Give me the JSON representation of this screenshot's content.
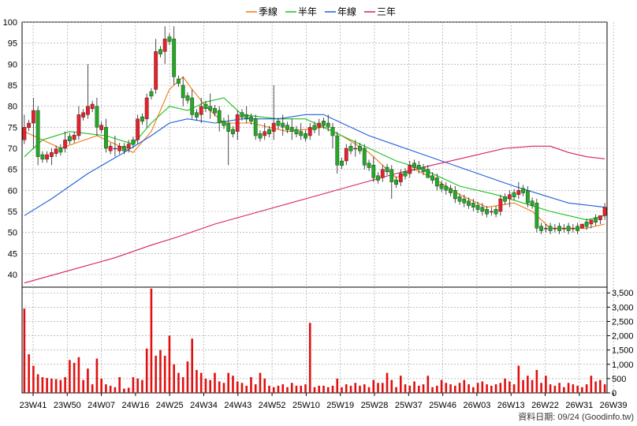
{
  "legend": [
    {
      "label": "季線",
      "color": "#f07a14"
    },
    {
      "label": "半年",
      "color": "#1fbf1f"
    },
    {
      "label": "年線",
      "color": "#1f5fd8"
    },
    {
      "label": "三年",
      "color": "#d61f6a"
    }
  ],
  "source_label": "資料日期: 09/24  (Goodinfo.tw)",
  "colors": {
    "up": "#e8202a",
    "down": "#22aa22",
    "wick": "#202020",
    "volume": "#e01010",
    "grid": "#9a9a9a"
  },
  "chart_data": {
    "type": "candlestick",
    "price_axis": {
      "min": 37,
      "max": 100,
      "ticks": [
        40,
        45,
        50,
        55,
        60,
        65,
        70,
        75,
        80,
        85,
        90,
        95,
        100
      ]
    },
    "volume_axis": {
      "min": 0,
      "max": 3700,
      "ticks": [
        0,
        500,
        "1,000",
        "1,500",
        "2,000",
        "2,500",
        "3,000",
        "3,500"
      ]
    },
    "x_ticks": [
      "23W41",
      "23W50",
      "24W07",
      "24W16",
      "24W25",
      "24W34",
      "24W43",
      "24W52",
      "25W10",
      "25W19",
      "25W28",
      "25W37",
      "25W46",
      "26W03",
      "26W13",
      "26W22",
      "26W31",
      "26W39"
    ],
    "ohlc_keyframes": [
      [
        0,
        72,
        78,
        71,
        75
      ],
      [
        2,
        76,
        82,
        70,
        79
      ],
      [
        3,
        79,
        80,
        66,
        68
      ],
      [
        6,
        68,
        70,
        66,
        69
      ],
      [
        9,
        70,
        74,
        69,
        72
      ],
      [
        12,
        73,
        80,
        72,
        78
      ],
      [
        14,
        78,
        90,
        77,
        80
      ],
      [
        16,
        80,
        82,
        73,
        75
      ],
      [
        18,
        75,
        77,
        69,
        70
      ],
      [
        20,
        70,
        73,
        68,
        70
      ],
      [
        23,
        70,
        72,
        69,
        71
      ],
      [
        25,
        72,
        78,
        71,
        77
      ],
      [
        27,
        77,
        83,
        75,
        82
      ],
      [
        29,
        84,
        96,
        83,
        93
      ],
      [
        31,
        93,
        99,
        90,
        96
      ],
      [
        33,
        96,
        99,
        85,
        87
      ],
      [
        35,
        85,
        87,
        80,
        82
      ],
      [
        37,
        82,
        84,
        77,
        78
      ],
      [
        39,
        78,
        82,
        76,
        80
      ],
      [
        41,
        80,
        83,
        77,
        79
      ],
      [
        43,
        79,
        80,
        74,
        76
      ],
      [
        45,
        76,
        78,
        66,
        74
      ],
      [
        47,
        74,
        79,
        72,
        78
      ],
      [
        49,
        78,
        80,
        76,
        77
      ],
      [
        51,
        77,
        78,
        72,
        73
      ],
      [
        53,
        73,
        76,
        72,
        74
      ],
      [
        55,
        74,
        85,
        72,
        76
      ],
      [
        57,
        76,
        78,
        73,
        75
      ],
      [
        59,
        75,
        77,
        72,
        74
      ],
      [
        61,
        74,
        76,
        72,
        73
      ],
      [
        63,
        73,
        76,
        72,
        75
      ],
      [
        65,
        75,
        77,
        73,
        76
      ],
      [
        67,
        76,
        78,
        74,
        75
      ],
      [
        68,
        75,
        76,
        70,
        73
      ],
      [
        69,
        73,
        74,
        64,
        66
      ],
      [
        71,
        67,
        71,
        66,
        70
      ],
      [
        73,
        70,
        72,
        68,
        70
      ],
      [
        75,
        70,
        71,
        65,
        66
      ],
      [
        77,
        66,
        68,
        62,
        63
      ],
      [
        79,
        63,
        66,
        62,
        65
      ],
      [
        81,
        65,
        66,
        58,
        62
      ],
      [
        83,
        62,
        65,
        61,
        64
      ],
      [
        85,
        64,
        67,
        63,
        66
      ],
      [
        87,
        66,
        67,
        64,
        65
      ],
      [
        89,
        65,
        66,
        63,
        63
      ],
      [
        91,
        63,
        64,
        60,
        61
      ],
      [
        93,
        61,
        62,
        59,
        60
      ],
      [
        95,
        60,
        61,
        57,
        58
      ],
      [
        97,
        58,
        59,
        56,
        57
      ],
      [
        99,
        57,
        58,
        55,
        56
      ],
      [
        101,
        56,
        57,
        54,
        55
      ],
      [
        103,
        55,
        56,
        54,
        55
      ],
      [
        105,
        55,
        59,
        54,
        58
      ],
      [
        107,
        58,
        60,
        56,
        59
      ],
      [
        109,
        59,
        62,
        58,
        60
      ],
      [
        111,
        60,
        61,
        56,
        57
      ],
      [
        113,
        57,
        58,
        50,
        51
      ],
      [
        115,
        51,
        52,
        50,
        51
      ],
      [
        117,
        51,
        52,
        50,
        51
      ],
      [
        119,
        51,
        52,
        50,
        51
      ],
      [
        121,
        51,
        52,
        50,
        51
      ],
      [
        123,
        51,
        52,
        51,
        52
      ],
      [
        125,
        52,
        53,
        51,
        53
      ],
      [
        127,
        53,
        54,
        52,
        54
      ],
      [
        128,
        54,
        57,
        53,
        56
      ]
    ],
    "volume_bars": [
      [
        0,
        2950
      ],
      [
        1,
        1350
      ],
      [
        2,
        950
      ],
      [
        3,
        650
      ],
      [
        4,
        550
      ],
      [
        5,
        520
      ],
      [
        6,
        500
      ],
      [
        7,
        480
      ],
      [
        8,
        450
      ],
      [
        9,
        550
      ],
      [
        10,
        1150
      ],
      [
        11,
        1050
      ],
      [
        12,
        1250
      ],
      [
        13,
        450
      ],
      [
        14,
        850
      ],
      [
        15,
        300
      ],
      [
        16,
        1200
      ],
      [
        17,
        500
      ],
      [
        18,
        300
      ],
      [
        19,
        250
      ],
      [
        20,
        200
      ],
      [
        21,
        550
      ],
      [
        22,
        150
      ],
      [
        23,
        180
      ],
      [
        24,
        550
      ],
      [
        25,
        500
      ],
      [
        26,
        450
      ],
      [
        27,
        1550
      ],
      [
        28,
        3650
      ],
      [
        29,
        1300
      ],
      [
        30,
        1500
      ],
      [
        31,
        1300
      ],
      [
        32,
        2000
      ],
      [
        33,
        1000
      ],
      [
        34,
        700
      ],
      [
        35,
        550
      ],
      [
        36,
        1100
      ],
      [
        37,
        1900
      ],
      [
        38,
        800
      ],
      [
        39,
        700
      ],
      [
        40,
        500
      ],
      [
        41,
        450
      ],
      [
        42,
        700
      ],
      [
        43,
        400
      ],
      [
        44,
        350
      ],
      [
        45,
        700
      ],
      [
        46,
        600
      ],
      [
        47,
        400
      ],
      [
        48,
        350
      ],
      [
        49,
        250
      ],
      [
        50,
        550
      ],
      [
        51,
        300
      ],
      [
        52,
        700
      ],
      [
        53,
        500
      ],
      [
        54,
        250
      ],
      [
        55,
        200
      ],
      [
        56,
        250
      ],
      [
        57,
        300
      ],
      [
        58,
        200
      ],
      [
        59,
        350
      ],
      [
        60,
        250
      ],
      [
        61,
        250
      ],
      [
        62,
        300
      ],
      [
        63,
        2450
      ],
      [
        64,
        200
      ],
      [
        65,
        250
      ],
      [
        66,
        250
      ],
      [
        67,
        200
      ],
      [
        68,
        250
      ],
      [
        69,
        500
      ],
      [
        70,
        200
      ],
      [
        71,
        300
      ],
      [
        72,
        250
      ],
      [
        73,
        350
      ],
      [
        74,
        250
      ],
      [
        75,
        300
      ],
      [
        76,
        200
      ],
      [
        77,
        450
      ],
      [
        78,
        350
      ],
      [
        79,
        350
      ],
      [
        80,
        700
      ],
      [
        81,
        450
      ],
      [
        82,
        200
      ],
      [
        83,
        600
      ],
      [
        84,
        300
      ],
      [
        85,
        250
      ],
      [
        86,
        400
      ],
      [
        87,
        250
      ],
      [
        88,
        300
      ],
      [
        89,
        600
      ],
      [
        90,
        200
      ],
      [
        91,
        250
      ],
      [
        92,
        450
      ],
      [
        93,
        350
      ],
      [
        94,
        300
      ],
      [
        95,
        250
      ],
      [
        96,
        350
      ],
      [
        97,
        450
      ],
      [
        98,
        300
      ],
      [
        99,
        200
      ],
      [
        100,
        350
      ],
      [
        101,
        400
      ],
      [
        102,
        300
      ],
      [
        103,
        250
      ],
      [
        104,
        300
      ],
      [
        105,
        350
      ],
      [
        106,
        500
      ],
      [
        107,
        400
      ],
      [
        108,
        300
      ],
      [
        109,
        950
      ],
      [
        110,
        450
      ],
      [
        111,
        600
      ],
      [
        112,
        450
      ],
      [
        113,
        800
      ],
      [
        114,
        350
      ],
      [
        115,
        600
      ],
      [
        116,
        300
      ],
      [
        117,
        250
      ],
      [
        118,
        350
      ],
      [
        119,
        200
      ],
      [
        120,
        350
      ],
      [
        121,
        300
      ],
      [
        122,
        250
      ],
      [
        123,
        200
      ],
      [
        124,
        300
      ],
      [
        125,
        600
      ],
      [
        126,
        400
      ],
      [
        127,
        450
      ],
      [
        128,
        300
      ]
    ],
    "series": [
      {
        "name": "季線",
        "points": [
          [
            0,
            74
          ],
          [
            8,
            70
          ],
          [
            16,
            73
          ],
          [
            24,
            69
          ],
          [
            28,
            74
          ],
          [
            32,
            84
          ],
          [
            35,
            87
          ],
          [
            37,
            84
          ],
          [
            40,
            80
          ],
          [
            44,
            76
          ],
          [
            50,
            76
          ],
          [
            58,
            74
          ],
          [
            66,
            75
          ],
          [
            70,
            73
          ],
          [
            76,
            69
          ],
          [
            82,
            63
          ],
          [
            86,
            65
          ],
          [
            90,
            63
          ],
          [
            96,
            59
          ],
          [
            102,
            56
          ],
          [
            108,
            57
          ],
          [
            112,
            55
          ],
          [
            116,
            51
          ],
          [
            120,
            51
          ],
          [
            124,
            51
          ],
          [
            128,
            52
          ]
        ]
      },
      {
        "name": "半年",
        "points": [
          [
            0,
            68
          ],
          [
            4,
            72
          ],
          [
            10,
            74
          ],
          [
            18,
            73
          ],
          [
            24,
            71
          ],
          [
            28,
            76
          ],
          [
            32,
            80
          ],
          [
            36,
            79
          ],
          [
            40,
            81
          ],
          [
            44,
            82
          ],
          [
            48,
            78
          ],
          [
            56,
            77
          ],
          [
            62,
            77
          ],
          [
            66,
            75
          ],
          [
            70,
            73
          ],
          [
            76,
            70
          ],
          [
            82,
            67
          ],
          [
            88,
            65
          ],
          [
            96,
            61
          ],
          [
            104,
            59
          ],
          [
            110,
            57
          ],
          [
            116,
            55
          ],
          [
            120,
            54
          ],
          [
            124,
            53
          ],
          [
            128,
            54
          ]
        ]
      },
      {
        "name": "年線",
        "points": [
          [
            0,
            54
          ],
          [
            6,
            58
          ],
          [
            14,
            64
          ],
          [
            22,
            69
          ],
          [
            28,
            73
          ],
          [
            32,
            76
          ],
          [
            36,
            77
          ],
          [
            42,
            76
          ],
          [
            48,
            77
          ],
          [
            56,
            77
          ],
          [
            62,
            78
          ],
          [
            66,
            78
          ],
          [
            70,
            76
          ],
          [
            76,
            73
          ],
          [
            84,
            70
          ],
          [
            92,
            67
          ],
          [
            100,
            64
          ],
          [
            108,
            61
          ],
          [
            114,
            59
          ],
          [
            120,
            57
          ],
          [
            128,
            56
          ]
        ]
      },
      {
        "name": "三年",
        "points": [
          [
            0,
            38
          ],
          [
            10,
            41
          ],
          [
            20,
            44
          ],
          [
            28,
            47
          ],
          [
            34,
            49
          ],
          [
            42,
            52
          ],
          [
            52,
            55
          ],
          [
            62,
            58
          ],
          [
            72,
            61
          ],
          [
            82,
            64
          ],
          [
            90,
            66
          ],
          [
            98,
            68
          ],
          [
            106,
            70
          ],
          [
            112,
            70.5
          ],
          [
            116,
            70.5
          ],
          [
            120,
            69
          ],
          [
            124,
            68
          ],
          [
            128,
            67.5
          ]
        ]
      }
    ]
  }
}
